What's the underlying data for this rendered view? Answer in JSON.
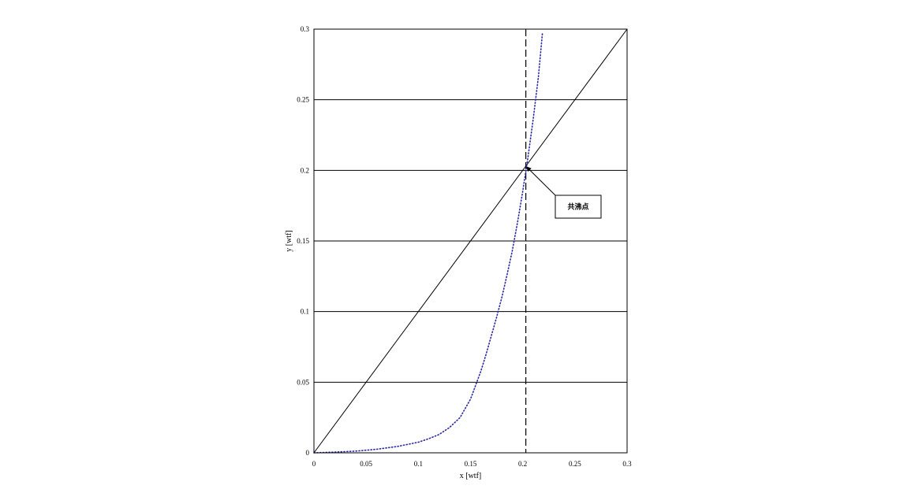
{
  "chart_data": {
    "type": "line",
    "xlabel": "x [wtf]",
    "ylabel": "y [wtf]",
    "xlim": [
      0,
      0.3
    ],
    "ylim": [
      0,
      0.3
    ],
    "x_ticks": [
      "0",
      "0.05",
      "0.1",
      "0.15",
      "0.2",
      "0.25",
      "0.3"
    ],
    "y_ticks": [
      "0",
      "0.05",
      "0.1",
      "0.15",
      "0.2",
      "0.25",
      "0.3"
    ],
    "grid": "horizontal",
    "series": [
      {
        "style": "solid",
        "color": "#000000",
        "points": [
          [
            0,
            0
          ],
          [
            0.3,
            0.3
          ]
        ]
      },
      {
        "style": "dotted",
        "color": "#2a2aa8",
        "points": [
          [
            0.0,
            0.0
          ],
          [
            0.02,
            0.0005
          ],
          [
            0.04,
            0.0012
          ],
          [
            0.06,
            0.0025
          ],
          [
            0.08,
            0.0045
          ],
          [
            0.1,
            0.0075
          ],
          [
            0.11,
            0.01
          ],
          [
            0.12,
            0.013
          ],
          [
            0.13,
            0.018
          ],
          [
            0.14,
            0.025
          ],
          [
            0.15,
            0.038
          ],
          [
            0.155,
            0.048
          ],
          [
            0.16,
            0.058
          ],
          [
            0.165,
            0.07
          ],
          [
            0.17,
            0.083
          ],
          [
            0.175,
            0.096
          ],
          [
            0.18,
            0.11
          ],
          [
            0.185,
            0.126
          ],
          [
            0.19,
            0.143
          ],
          [
            0.195,
            0.163
          ],
          [
            0.2,
            0.185
          ],
          [
            0.205,
            0.209
          ],
          [
            0.21,
            0.236
          ],
          [
            0.215,
            0.266
          ],
          [
            0.219,
            0.298
          ]
        ]
      }
    ],
    "vline": {
      "x": 0.203,
      "style": "dashed",
      "color": "#000000"
    },
    "annotations": [
      {
        "text": "共沸点",
        "point": [
          0.203,
          0.203
        ]
      }
    ]
  }
}
